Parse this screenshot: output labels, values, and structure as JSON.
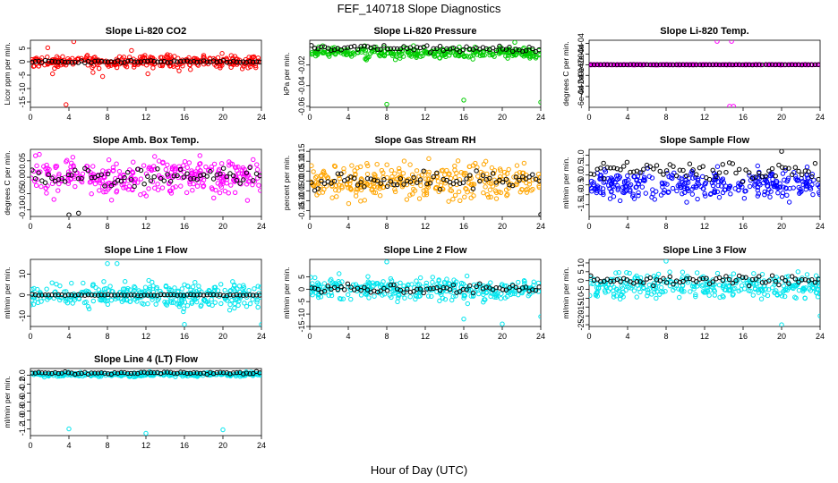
{
  "page": {
    "title": "FEF_140718  Slope Diagnostics",
    "xlabel": "Hour of Day (UTC)"
  },
  "chart_data": [
    {
      "type": "scatter",
      "title": "Slope Li-820 CO2",
      "ylabel": "Licor ppm per min.",
      "xlim": [
        0,
        24
      ],
      "ylim": [
        -17,
        8
      ],
      "xticks": [
        "0",
        "4",
        "8",
        "12",
        "16",
        "20",
        "24"
      ],
      "yticks": [
        -15,
        -10,
        -5,
        0,
        5
      ],
      "series": [
        {
          "color": "#ff0000",
          "center": 0,
          "spread": 1.6,
          "outliers": [
            [
              3.7,
              -16
            ],
            [
              4.5,
              7.5
            ],
            [
              1.8,
              5.2
            ],
            [
              2.3,
              -4.5
            ],
            [
              7.5,
              -5.5
            ],
            [
              10.5,
              4.2
            ],
            [
              12.2,
              -4.5
            ],
            [
              6.5,
              -4
            ]
          ]
        },
        {
          "color": "#000000",
          "center": 0,
          "spread": 0.3
        }
      ]
    },
    {
      "type": "scatter",
      "title": "Slope Li-820 Pressure",
      "ylabel": "kPa per min.",
      "xlim": [
        0,
        24
      ],
      "ylim": [
        -0.061,
        0.004
      ],
      "xticks": [
        "0",
        "4",
        "8",
        "12",
        "16",
        "20",
        "24"
      ],
      "yticks": [
        -0.06,
        -0.04,
        -0.02
      ],
      "ytick_labels": [
        "-0.06",
        "-0.04",
        "-0.02"
      ],
      "series": [
        {
          "color": "#00cc00",
          "center": -0.008,
          "spread": 0.0035,
          "outliers": [
            [
              8,
              -0.058
            ],
            [
              16,
              -0.054
            ],
            [
              24,
              -0.056
            ],
            [
              21.3,
              0.002
            ]
          ]
        },
        {
          "color": "#000000",
          "center": -0.004,
          "spread": 0.002
        }
      ]
    },
    {
      "type": "scatter",
      "title": "Slope Li-820 Temp.",
      "ylabel": "degrees C per min.",
      "xlim": [
        0,
        24
      ],
      "ylim": [
        -0.0008,
        0.00046
      ],
      "xticks": [
        "0",
        "4",
        "8",
        "12",
        "16",
        "20",
        "24"
      ],
      "yticks": [
        -0.0006,
        -0.0004,
        -0.0002,
        0,
        0.0002,
        0.0004
      ],
      "ytick_labels": [
        "-6e-04",
        "-4e-04",
        "-2e-04",
        "0e+00",
        "2e-04",
        "4e-04"
      ],
      "series": [
        {
          "color": "#ff00ff",
          "center": 0,
          "spread": 3e-06,
          "outliers": [
            [
              13.3,
              0.00044
            ],
            [
              14.8,
              0.00044
            ],
            [
              14.6,
              -0.00078
            ],
            [
              15,
              -0.00078
            ]
          ]
        },
        {
          "color": "#000000",
          "center": 0,
          "spread": 2e-06
        }
      ]
    },
    {
      "type": "scatter",
      "title": "Slope Amb. Box Temp.",
      "ylabel": "degrees C per min.",
      "xlim": [
        0,
        24
      ],
      "ylim": [
        -0.12,
        0.085
      ],
      "xticks": [
        "0",
        "4",
        "8",
        "12",
        "16",
        "20",
        "24"
      ],
      "yticks": [
        -0.1,
        -0.05,
        0,
        0.05
      ],
      "ytick_labels": [
        "-0.10",
        "-0.05",
        "0.00",
        "0.05"
      ],
      "series": [
        {
          "color": "#ff00ff",
          "center": 0,
          "spread": 0.04
        },
        {
          "color": "#000000",
          "center": 0,
          "spread": 0.02,
          "outliers": [
            [
              4,
              -0.115
            ],
            [
              5,
              -0.11
            ]
          ]
        }
      ]
    },
    {
      "type": "scatter",
      "title": "Slope Gas Stream RH",
      "ylabel": "percent per min.",
      "xlim": [
        0,
        24
      ],
      "ylim": [
        -0.18,
        0.16
      ],
      "xticks": [
        "0",
        "4",
        "8",
        "12",
        "16",
        "20",
        "24"
      ],
      "yticks": [
        -0.15,
        -0.1,
        -0.05,
        0,
        0.05,
        0.1,
        0.15
      ],
      "ytick_labels": [
        "-0.15",
        "-0.10",
        "-0.05",
        "0.00",
        "0.05",
        "0.10",
        "0.15"
      ],
      "series": [
        {
          "color": "#ffa500",
          "center": 0,
          "spread": 0.06
        },
        {
          "color": "#000000",
          "center": 0,
          "spread": 0.03,
          "outliers": [
            [
              24,
              -0.17
            ]
          ]
        }
      ]
    },
    {
      "type": "scatter",
      "title": "Slope Sample Flow",
      "ylabel": "ml/min per min.",
      "xlim": [
        0,
        24
      ],
      "ylim": [
        -2.1,
        1.3
      ],
      "xticks": [
        "0",
        "4",
        "8",
        "12",
        "16",
        "20",
        "24"
      ],
      "yticks": [
        -1.5,
        -1,
        -0.5,
        0,
        0.5,
        1
      ],
      "ytick_labels": [
        "-1.5",
        "-1.0",
        "-0.5",
        "0.0",
        "0.5",
        "1.0"
      ],
      "series": [
        {
          "color": "#0000ff",
          "center": -0.5,
          "spread": 0.5
        },
        {
          "color": "#000000",
          "center": 0.2,
          "spread": 0.3,
          "outliers": [
            [
              20,
              1.2
            ],
            [
              1.5,
              0.6
            ]
          ]
        }
      ]
    },
    {
      "type": "scatter",
      "title": "Slope Line 1 Flow",
      "ylabel": "ml/min per min.",
      "xlim": [
        0,
        24
      ],
      "ylim": [
        -15,
        17
      ],
      "xticks": [
        "0",
        "4",
        "8",
        "12",
        "16",
        "20",
        "24"
      ],
      "yticks": [
        -10,
        0,
        10
      ],
      "series": [
        {
          "color": "#00e5ee",
          "center": 0,
          "spread": 4,
          "outliers": [
            [
              16,
              -14
            ],
            [
              24,
              -14
            ],
            [
              8,
              15
            ],
            [
              9,
              15
            ]
          ]
        },
        {
          "color": "#000000",
          "center": 0,
          "spread": 0.2
        }
      ]
    },
    {
      "type": "scatter",
      "title": "Slope Line 2 Flow",
      "ylabel": "ml/min per min.",
      "xlim": [
        0,
        24
      ],
      "ylim": [
        -15,
        12
      ],
      "xticks": [
        "0",
        "4",
        "8",
        "12",
        "16",
        "20",
        "24"
      ],
      "yticks": [
        -15,
        -10,
        -5,
        0,
        5
      ],
      "series": [
        {
          "color": "#00e5ee",
          "center": 0,
          "spread": 3,
          "outliers": [
            [
              16,
              -12
            ],
            [
              20,
              -14
            ],
            [
              24,
              -11
            ],
            [
              8,
              11
            ]
          ]
        },
        {
          "color": "#000000",
          "center": 0,
          "spread": 1.5
        }
      ]
    },
    {
      "type": "scatter",
      "title": "Slope Line 3 Flow",
      "ylabel": "ml/min per min.",
      "xlim": [
        0,
        24
      ],
      "ylim": [
        -26,
        12
      ],
      "xticks": [
        "0",
        "4",
        "8",
        "12",
        "16",
        "20",
        "24"
      ],
      "yticks": [
        -25,
        -20,
        -15,
        -10,
        -5,
        0,
        5,
        10
      ],
      "series": [
        {
          "color": "#00e5ee",
          "center": -3,
          "spread": 5,
          "outliers": [
            [
              20,
              -25
            ],
            [
              8,
              11
            ],
            [
              24,
              -20
            ]
          ]
        },
        {
          "color": "#000000",
          "center": 0,
          "spread": 2
        }
      ]
    },
    {
      "type": "scatter",
      "title": "Slope Line 4 (LT) Flow",
      "ylabel": "ml/min per min.",
      "xlim": [
        0,
        24
      ],
      "ylim": [
        -1.35,
        0.15
      ],
      "xticks": [
        "0",
        "4",
        "8",
        "12",
        "16",
        "20",
        "24"
      ],
      "yticks": [
        -1.2,
        -1,
        -0.8,
        -0.6,
        -0.4,
        -0.2,
        0
      ],
      "ytick_labels": [
        "-1.2",
        "-1.0",
        "-0.8",
        "-0.6",
        "-0.4",
        "-0.2",
        "0.0"
      ],
      "series": [
        {
          "color": "#00e5ee",
          "center": 0.02,
          "spread": 0.03,
          "outliers": [
            [
              4,
              -1.2
            ],
            [
              12,
              -1.3
            ],
            [
              20,
              -1.22
            ]
          ]
        },
        {
          "color": "#000000",
          "center": 0.05,
          "spread": 0.02
        }
      ]
    }
  ]
}
